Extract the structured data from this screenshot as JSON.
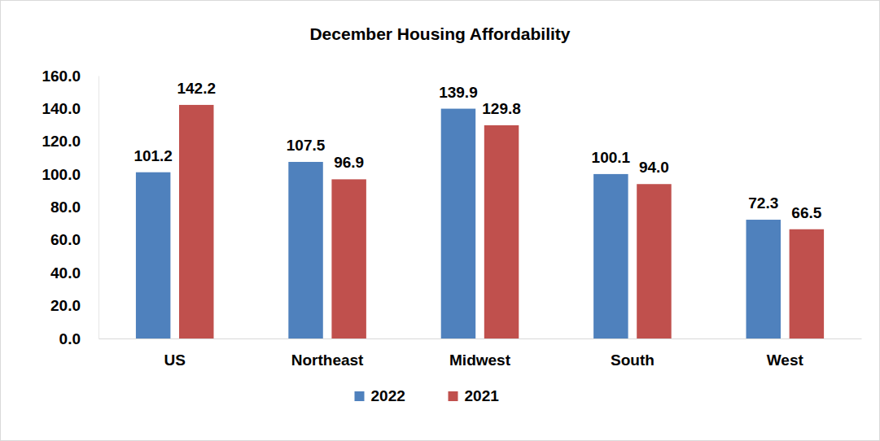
{
  "chart_data": {
    "type": "bar",
    "title": "December Housing Affordability",
    "categories": [
      "US",
      "Northeast",
      "Midwest",
      "South",
      "West"
    ],
    "series": [
      {
        "name": "2022",
        "color": "#4f81bd",
        "values": [
          101.2,
          107.5,
          139.9,
          100.1,
          72.3
        ],
        "value_labels": [
          "101.2",
          "107.5",
          "139.9",
          "100.1",
          "72.3"
        ]
      },
      {
        "name": "2021",
        "color": "#c0504d",
        "values": [
          142.2,
          96.9,
          129.8,
          94.0,
          66.5
        ],
        "value_labels": [
          "142.2",
          "96.9",
          "129.8",
          "94.0",
          "66.5"
        ]
      }
    ],
    "ylim": [
      0,
      160
    ],
    "yticks": [
      {
        "value": 0,
        "label": "0.0"
      },
      {
        "value": 20,
        "label": "20.0"
      },
      {
        "value": 40,
        "label": "40.0"
      },
      {
        "value": 60,
        "label": "60.0"
      },
      {
        "value": 80,
        "label": "80.0"
      },
      {
        "value": 100,
        "label": "100.0"
      },
      {
        "value": 120,
        "label": "120.0"
      },
      {
        "value": 140,
        "label": "140.0"
      },
      {
        "value": 160,
        "label": "160.0"
      }
    ],
    "grid": false,
    "legend": "bottom",
    "data_labels": true
  }
}
